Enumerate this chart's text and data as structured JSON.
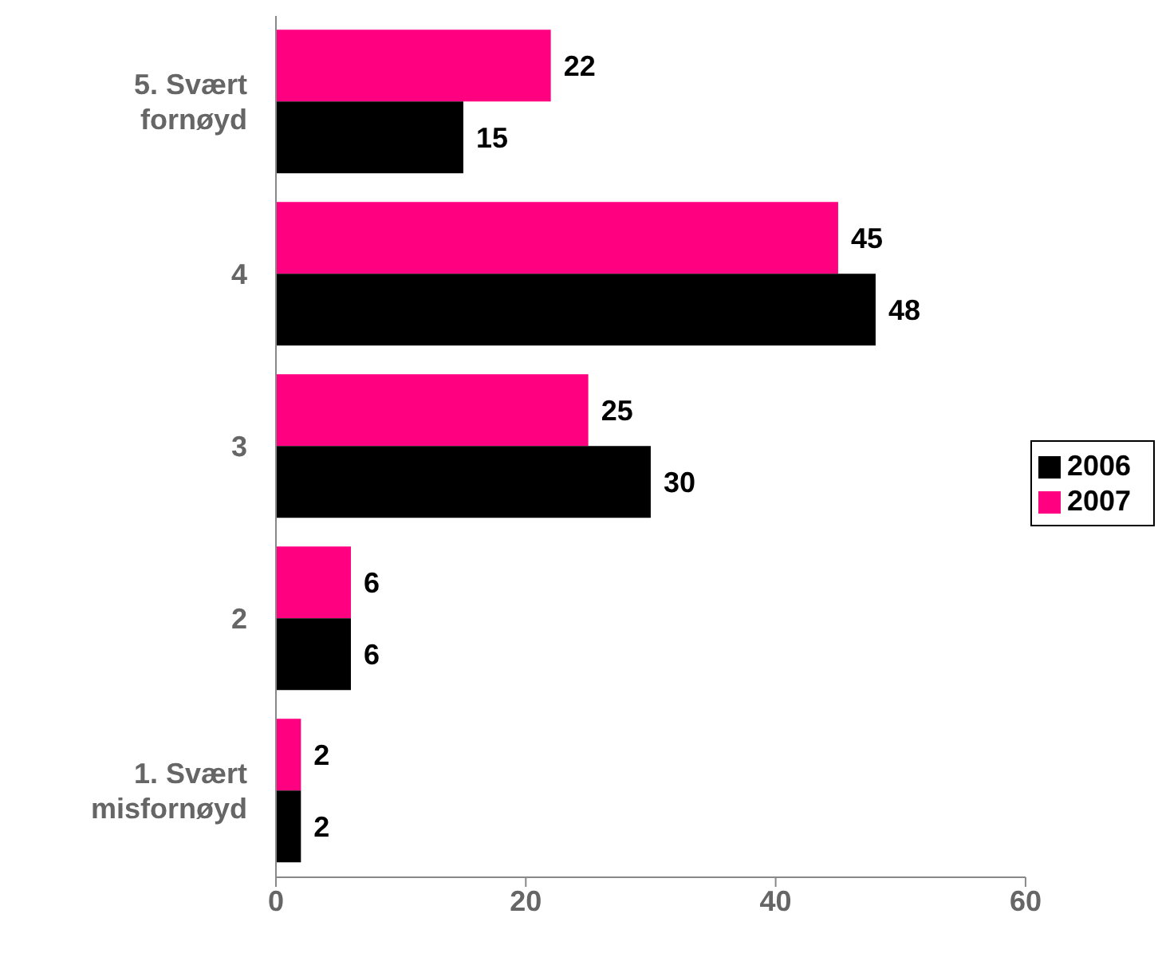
{
  "chart_data": {
    "type": "bar",
    "orientation": "horizontal",
    "categories": [
      "5. Svært fornøyd",
      "4",
      "3",
      "2",
      "1. Svært misfornøyd"
    ],
    "series": [
      {
        "name": "2007",
        "color": "#ff0080",
        "values": [
          22,
          45,
          25,
          6,
          2
        ]
      },
      {
        "name": "2006",
        "color": "#000000",
        "values": [
          15,
          48,
          30,
          6,
          2
        ]
      }
    ],
    "xlim": [
      0,
      60
    ],
    "xticks": [
      0,
      20,
      40,
      60
    ],
    "data_labels": true,
    "grid": false,
    "legend": "right"
  }
}
